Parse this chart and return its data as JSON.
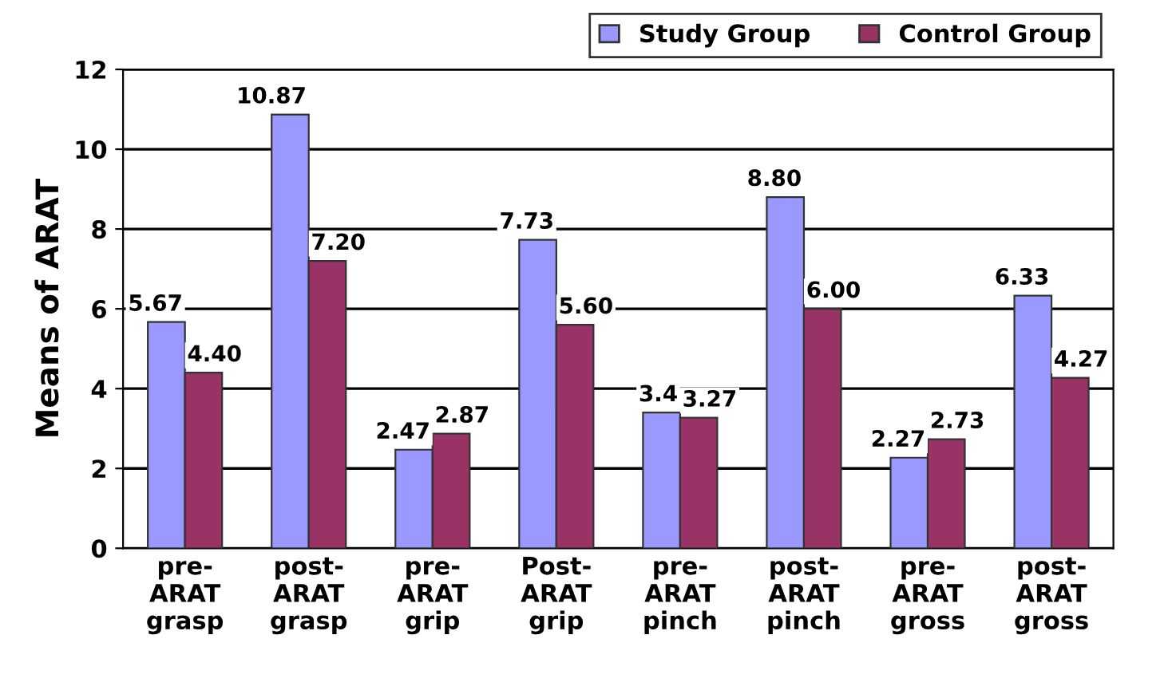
{
  "chart_data": {
    "type": "bar",
    "ylabel": "Means of ARAT",
    "categories": [
      "pre- ARAT grasp",
      "post- ARAT grasp",
      "pre- ARAT grip",
      "Post- ARAT grip",
      "pre- ARAT pinch",
      "post- ARAT pinch",
      "pre- ARAT gross",
      "post- ARAT gross"
    ],
    "series": [
      {
        "name": "Study Group",
        "color": "#9999ff",
        "values": [
          5.67,
          10.87,
          2.47,
          7.73,
          3.4,
          8.8,
          2.27,
          6.33
        ],
        "value_labels": [
          "5.67",
          "10.87",
          "2.47",
          "7.73",
          "3.4",
          "8.80",
          "2.27",
          "6.33"
        ]
      },
      {
        "name": "Control Group",
        "color": "#993366",
        "values": [
          4.4,
          7.2,
          2.87,
          5.6,
          3.27,
          6.0,
          2.73,
          4.27
        ],
        "value_labels": [
          "4.40",
          "7.20",
          "2.87",
          "5.60",
          "3.27",
          "6.00",
          "2.73",
          "4.27"
        ]
      }
    ],
    "ylim": [
      0,
      12
    ],
    "yticks": [
      0,
      2,
      4,
      6,
      8,
      10,
      12
    ],
    "grid": "y",
    "legend": "top right"
  }
}
